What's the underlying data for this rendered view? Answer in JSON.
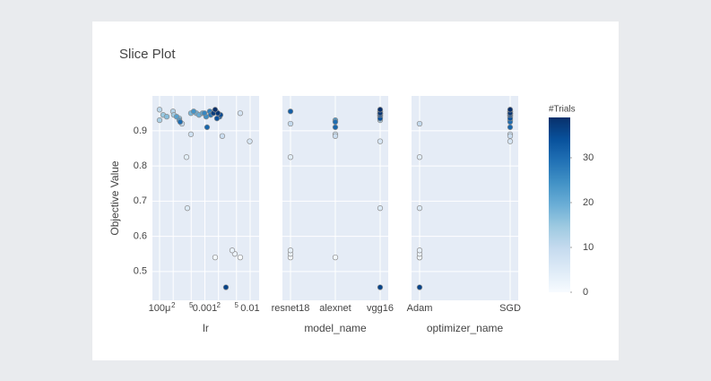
{
  "title": "Slice Plot",
  "y_label": "Objective Value",
  "colorbar": {
    "title": "#Trials",
    "range": [
      0,
      39
    ],
    "ticks": [
      0,
      10,
      20,
      30
    ],
    "colorscale": [
      "#f7fbff",
      "#deebf7",
      "#c6dbef",
      "#9ecae1",
      "#6baed6",
      "#4292c6",
      "#2171b5",
      "#08519c",
      "#08306b"
    ]
  },
  "chart_data": [
    {
      "type": "scatter",
      "xlabel": "lr",
      "xscale": "log",
      "xlim": [
        6.95e-05,
        0.0158
      ],
      "xticks": [
        {
          "value": 0.0001,
          "label": "100μ"
        },
        {
          "value": 0.0002,
          "label": "2"
        },
        {
          "value": 0.0005,
          "label": "5"
        },
        0.001,
        {
          "value": 0.002,
          "label": "2"
        },
        {
          "value": 0.005,
          "label": "5"
        },
        0.01
      ],
      "ylim": [
        0.418,
        0.999
      ],
      "yticks": [
        0.5,
        0.6,
        0.7,
        0.8,
        0.9
      ],
      "grid": true,
      "x": [
        0.00605,
        0.00169,
        0.0046,
        0.00402,
        0.000393,
        0.000411,
        0.0098,
        0.00605,
        0.000493,
        0.00243,
        0.000313,
        0.0001,
        0.000198,
        0.0001,
        0.000207,
        0.00012,
        0.000273,
        0.000144,
        0.000493,
        0.000649,
        0.000743,
        0.000892,
        0.000238,
        0.000273,
        0.000566,
        0.00107,
        0.00098,
        0.00128,
        0.00161,
        0.00135,
        0.000285,
        0.00112,
        0.00177,
        0.00212,
        0.00185,
        0.00222,
        0.00292,
        0.00154,
        0.00194,
        0.00169
      ],
      "y": [
        0.54,
        0.54,
        0.55,
        0.56,
        0.825,
        0.68,
        0.87,
        0.95,
        0.89,
        0.885,
        0.92,
        0.96,
        0.955,
        0.93,
        0.945,
        0.945,
        0.935,
        0.94,
        0.95,
        0.95,
        0.945,
        0.95,
        0.94,
        0.93,
        0.955,
        0.94,
        0.95,
        0.955,
        0.955,
        0.945,
        0.925,
        0.91,
        0.955,
        0.94,
        0.935,
        0.945,
        0.455,
        0.95,
        0.95,
        0.96
      ],
      "color_values": [
        0,
        1,
        2,
        3,
        4,
        5,
        6,
        7,
        8,
        9,
        10,
        11,
        12,
        13,
        14,
        15,
        16,
        17,
        18,
        19,
        20,
        21,
        22,
        23,
        24,
        25,
        26,
        27,
        28,
        29,
        30,
        31,
        32,
        33,
        34,
        35,
        36,
        37,
        38,
        39
      ]
    },
    {
      "type": "scatter",
      "xlabel": "model_name",
      "categories": [
        "resnet18",
        "alexnet",
        "vgg16"
      ],
      "ylim": [
        0.418,
        0.999
      ],
      "yticks": [
        0.5,
        0.6,
        0.7,
        0.8,
        0.9
      ],
      "grid": true,
      "x": [
        "resnet18",
        "alexnet",
        "resnet18",
        "resnet18",
        "resnet18",
        "vgg16",
        "vgg16",
        "vgg16",
        "alexnet",
        "alexnet",
        "resnet18",
        "vgg16",
        "vgg16",
        "vgg16",
        "vgg16",
        "vgg16",
        "vgg16",
        "vgg16",
        "vgg16",
        "vgg16",
        "vgg16",
        "vgg16",
        "vgg16",
        "alexnet",
        "vgg16",
        "vgg16",
        "vgg16",
        "vgg16",
        "vgg16",
        "vgg16",
        "alexnet",
        "alexnet",
        "resnet18",
        "vgg16",
        "vgg16",
        "vgg16",
        "vgg16",
        "vgg16",
        "vgg16",
        "vgg16"
      ],
      "y": [
        0.54,
        0.54,
        0.55,
        0.56,
        0.825,
        0.68,
        0.87,
        0.95,
        0.89,
        0.885,
        0.92,
        0.96,
        0.955,
        0.93,
        0.945,
        0.945,
        0.935,
        0.94,
        0.95,
        0.95,
        0.945,
        0.95,
        0.94,
        0.93,
        0.955,
        0.94,
        0.95,
        0.955,
        0.955,
        0.945,
        0.925,
        0.91,
        0.955,
        0.94,
        0.935,
        0.945,
        0.455,
        0.95,
        0.95,
        0.96
      ],
      "color_values": [
        0,
        1,
        2,
        3,
        4,
        5,
        6,
        7,
        8,
        9,
        10,
        11,
        12,
        13,
        14,
        15,
        16,
        17,
        18,
        19,
        20,
        21,
        22,
        23,
        24,
        25,
        26,
        27,
        28,
        29,
        30,
        31,
        32,
        33,
        34,
        35,
        36,
        37,
        38,
        39
      ]
    },
    {
      "type": "scatter",
      "xlabel": "optimizer_name",
      "categories": [
        "Adam",
        "SGD"
      ],
      "ylim": [
        0.418,
        0.999
      ],
      "yticks": [
        0.5,
        0.6,
        0.7,
        0.8,
        0.9
      ],
      "grid": true,
      "x": [
        "Adam",
        "Adam",
        "Adam",
        "Adam",
        "Adam",
        "Adam",
        "SGD",
        "SGD",
        "SGD",
        "SGD",
        "Adam",
        "SGD",
        "SGD",
        "SGD",
        "SGD",
        "SGD",
        "SGD",
        "SGD",
        "SGD",
        "SGD",
        "SGD",
        "SGD",
        "SGD",
        "SGD",
        "SGD",
        "SGD",
        "SGD",
        "SGD",
        "SGD",
        "SGD",
        "SGD",
        "SGD",
        "SGD",
        "SGD",
        "SGD",
        "SGD",
        "Adam",
        "SGD",
        "SGD",
        "SGD"
      ],
      "y": [
        0.54,
        0.54,
        0.55,
        0.56,
        0.825,
        0.68,
        0.87,
        0.95,
        0.89,
        0.885,
        0.92,
        0.96,
        0.955,
        0.93,
        0.945,
        0.945,
        0.935,
        0.94,
        0.95,
        0.95,
        0.945,
        0.95,
        0.94,
        0.93,
        0.955,
        0.94,
        0.95,
        0.955,
        0.955,
        0.945,
        0.925,
        0.91,
        0.955,
        0.94,
        0.935,
        0.945,
        0.455,
        0.95,
        0.95,
        0.96
      ],
      "color_values": [
        0,
        1,
        2,
        3,
        4,
        5,
        6,
        7,
        8,
        9,
        10,
        11,
        12,
        13,
        14,
        15,
        16,
        17,
        18,
        19,
        20,
        21,
        22,
        23,
        24,
        25,
        26,
        27,
        28,
        29,
        30,
        31,
        32,
        33,
        34,
        35,
        36,
        37,
        38,
        39
      ]
    }
  ]
}
